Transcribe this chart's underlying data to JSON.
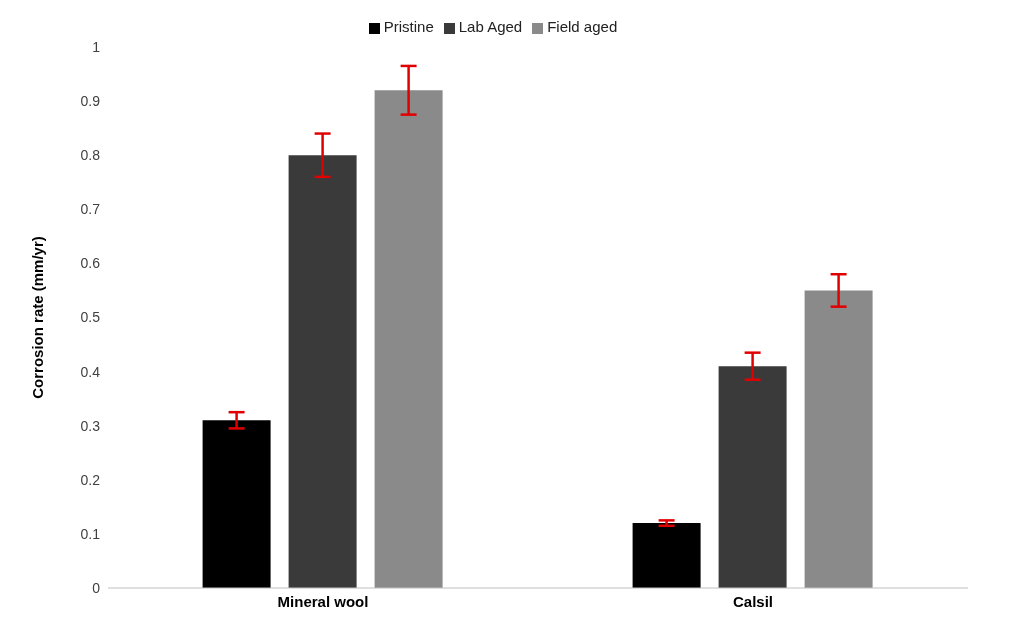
{
  "chart_data": {
    "type": "bar",
    "ylabel": "Corrosion rate (mm/yr)",
    "categories": [
      "Mineral wool",
      "Calsil"
    ],
    "series": [
      {
        "name": "Pristine",
        "color": "#000000",
        "values": [
          0.31,
          0.12
        ],
        "errors": [
          0.015,
          0.005
        ]
      },
      {
        "name": "Lab Aged",
        "color": "#3a3a3a",
        "values": [
          0.8,
          0.41
        ],
        "errors": [
          0.04,
          0.025
        ]
      },
      {
        "name": "Field aged",
        "color": "#8a8a8a",
        "values": [
          0.92,
          0.55
        ],
        "errors": [
          0.045,
          0.03
        ]
      }
    ],
    "ylim": [
      0,
      1
    ],
    "yticks": [
      0,
      0.1,
      0.2,
      0.3,
      0.4,
      0.5,
      0.6,
      0.7,
      0.8,
      0.9,
      1
    ],
    "grid": false,
    "legend": "top"
  }
}
